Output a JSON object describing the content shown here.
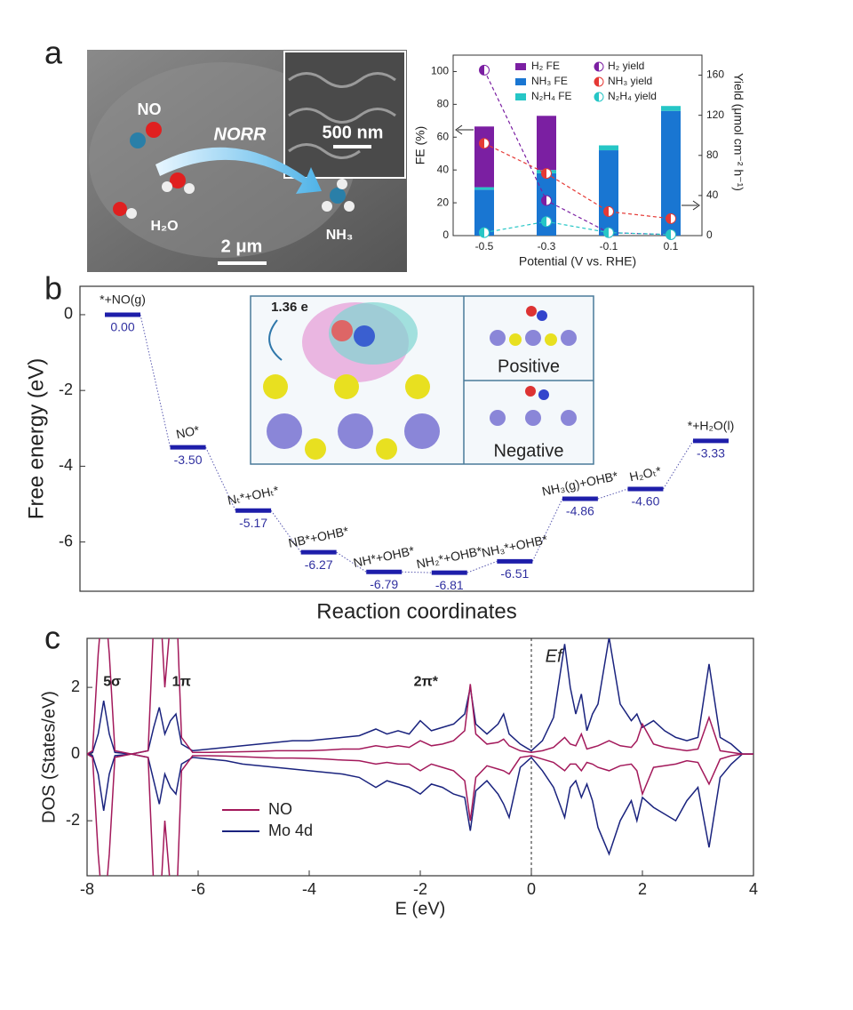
{
  "panel_labels": [
    "a",
    "b",
    "c"
  ],
  "sem_image": {
    "labels": [
      "NO",
      "NORR",
      "500 nm",
      "H₂O",
      "2 μm",
      "NH₃"
    ]
  },
  "chart_data": [
    {
      "type": "bar",
      "categories": [
        "-0.5",
        "-0.3",
        "-0.1",
        "0.1"
      ],
      "xlabel": "Potential (V vs. RHE)",
      "ylabel": "FE (%)",
      "y2label": "Yield (μmol cm⁻² h⁻¹)",
      "ylim": [
        0,
        110
      ],
      "yticks": [
        0,
        20,
        40,
        60,
        80,
        100
      ],
      "y2lim": [
        0,
        180
      ],
      "y2ticks": [
        0,
        40,
        80,
        120,
        160
      ],
      "stacked": true,
      "series": [
        {
          "name": "H₂ FE",
          "color": "#7b1fa2",
          "values": [
            37,
            33,
            0,
            0
          ]
        },
        {
          "name": "NH₃ FE",
          "color": "#1976d2",
          "values": [
            28,
            38,
            52,
            76
          ]
        },
        {
          "name": "N₂H₄ FE",
          "color": "#26c6c6",
          "values": [
            1.5,
            2,
            3,
            3
          ]
        },
        {
          "name": "H₂ yield",
          "color": "#7b1fa2",
          "axis": "y2",
          "values": [
            165,
            35,
            3,
            1
          ]
        },
        {
          "name": "NH₃ yield",
          "color": "#e53935",
          "axis": "y2",
          "values": [
            92,
            62,
            24,
            17
          ]
        },
        {
          "name": "N₂H₄ yield",
          "color": "#26c6c6",
          "axis": "y2",
          "values": [
            3,
            14,
            3,
            1
          ]
        }
      ]
    },
    {
      "type": "step",
      "ylabel": "Free energy (eV)",
      "xlabel": "Reaction coordinates",
      "categories": [
        "*+NO(g)",
        "NO*",
        "Nₜ*+OHₜ*",
        "NB*+OHB*",
        "NH*+OHB*",
        "NH₂*+OHB*",
        "NH₃*+OHB*",
        "NH₃(g)+OHB*",
        "H₂Oₜ*",
        "*+H₂O(l)"
      ],
      "values": [
        0.0,
        -3.5,
        -5.17,
        -6.27,
        -6.79,
        -6.81,
        -6.51,
        -4.86,
        -4.6,
        -3.33
      ],
      "value_labels": [
        "0.00",
        "-3.50",
        "-5.17",
        "-6.27",
        "-6.79",
        "-6.81",
        "-6.51",
        "-4.86",
        "-4.60",
        "-3.33"
      ],
      "ylim": [
        -7.3,
        0.75
      ],
      "yticks": [
        0,
        -2,
        -4,
        -6
      ],
      "color": "#1e1eaa",
      "inset_labels": [
        "1.36 e",
        "Positive",
        "Negative"
      ]
    },
    {
      "type": "line",
      "xlabel": "E (eV)",
      "ylabel": "DOS (States/eV)",
      "x": [
        -8,
        -7.9,
        -7.8,
        -7.7,
        -7.6,
        -7.5,
        -7.2,
        -6.9,
        -6.8,
        -6.7,
        -6.6,
        -6.5,
        -6.4,
        -6.3,
        -6.1,
        -5.8,
        -5.5,
        -5.2,
        -4.9,
        -4.6,
        -4.3,
        -4.0,
        -3.7,
        -3.4,
        -3.1,
        -2.8,
        -2.6,
        -2.4,
        -2.2,
        -2.0,
        -1.8,
        -1.6,
        -1.4,
        -1.2,
        -1.1,
        -1.0,
        -0.8,
        -0.6,
        -0.5,
        -0.4,
        -0.2,
        0,
        0.2,
        0.4,
        0.6,
        0.7,
        0.8,
        0.9,
        1.0,
        1.1,
        1.2,
        1.4,
        1.6,
        1.8,
        1.9,
        2.0,
        2.2,
        2.4,
        2.6,
        2.8,
        3.0,
        3.2,
        3.4,
        3.6,
        3.8,
        4.0
      ],
      "xlim": [
        -8,
        4
      ],
      "xticks": [
        -8,
        -6,
        -4,
        -2,
        0,
        2,
        4
      ],
      "ylim": [
        -3.65,
        3.47
      ],
      "yticks": [
        -2,
        0,
        2
      ],
      "vline": 0,
      "annotations": [
        "5σ",
        "1π",
        "2π*",
        "Ef"
      ],
      "series": [
        {
          "name": "NO",
          "color": "#a3195b",
          "values": [
            0,
            0.1,
            3,
            5,
            3,
            0.1,
            0,
            0.1,
            4,
            5,
            2,
            4,
            5,
            0.5,
            0.05,
            0.05,
            0.06,
            0.07,
            0.08,
            0.1,
            0.1,
            0.1,
            0.12,
            0.15,
            0.15,
            0.25,
            0.2,
            0.25,
            0.2,
            0.4,
            0.25,
            0.3,
            0.4,
            0.7,
            2.1,
            0.6,
            0.3,
            0.35,
            0.45,
            0.25,
            0.1,
            0.05,
            0.1,
            0.2,
            0.5,
            0.3,
            0.25,
            0.6,
            0.15,
            0.2,
            0.25,
            0.4,
            0.25,
            0.2,
            0.4,
            0.9,
            0.3,
            0.2,
            0.15,
            0.1,
            0.15,
            1.1,
            0.1,
            0.05,
            0,
            0
          ],
          "values_down": [
            0,
            -0.1,
            -3,
            -5,
            -3,
            -0.1,
            0,
            -0.1,
            -4,
            -5,
            -2,
            -4,
            -5,
            -0.5,
            -0.05,
            -0.05,
            -0.06,
            -0.08,
            -0.1,
            -0.12,
            -0.12,
            -0.13,
            -0.15,
            -0.18,
            -0.2,
            -0.3,
            -0.25,
            -0.3,
            -0.3,
            -0.5,
            -0.3,
            -0.4,
            -0.5,
            -0.8,
            -2.0,
            -0.7,
            -0.35,
            -0.45,
            -0.5,
            -0.6,
            -0.1,
            -0.05,
            -0.15,
            -0.25,
            -0.5,
            -0.3,
            -0.3,
            -0.5,
            -0.25,
            -0.3,
            -0.4,
            -0.5,
            -0.35,
            -0.3,
            -0.5,
            -1.2,
            -0.4,
            -0.35,
            -0.3,
            -0.2,
            -0.25,
            -0.9,
            -0.15,
            -0.05,
            0,
            0
          ]
        },
        {
          "name": "Mo 4d",
          "color": "#1a237e",
          "values": [
            0,
            0.05,
            0.6,
            1.6,
            0.6,
            0.05,
            0,
            0.1,
            0.8,
            1.4,
            0.6,
            1.0,
            1.2,
            0.3,
            0.1,
            0.15,
            0.2,
            0.25,
            0.3,
            0.35,
            0.4,
            0.4,
            0.45,
            0.5,
            0.55,
            0.75,
            0.6,
            0.7,
            0.6,
            1.0,
            0.7,
            0.8,
            0.9,
            1.2,
            2.0,
            0.9,
            0.6,
            0.9,
            1.2,
            0.6,
            0.3,
            0.1,
            0.4,
            1.1,
            3.3,
            2.0,
            1.2,
            1.8,
            0.7,
            1.2,
            1.5,
            3.5,
            1.5,
            1.0,
            1.2,
            0.8,
            1.0,
            0.7,
            0.5,
            0.4,
            0.5,
            2.7,
            0.5,
            0.3,
            0,
            0
          ],
          "values_down": [
            0,
            -0.05,
            -0.6,
            -1.7,
            -0.6,
            -0.05,
            0,
            -0.1,
            -0.8,
            -1.5,
            -0.6,
            -1.0,
            -1.2,
            -0.3,
            -0.1,
            -0.15,
            -0.2,
            -0.3,
            -0.35,
            -0.4,
            -0.45,
            -0.5,
            -0.55,
            -0.6,
            -0.7,
            -1.0,
            -0.8,
            -0.9,
            -1.0,
            -1.2,
            -0.9,
            -1.0,
            -1.2,
            -1.3,
            -2.3,
            -1.1,
            -0.8,
            -1.2,
            -1.5,
            -1.9,
            -0.4,
            -0.1,
            -0.5,
            -1.0,
            -1.9,
            -1.0,
            -0.8,
            -1.3,
            -0.9,
            -1.4,
            -2.2,
            -3.0,
            -2.0,
            -1.4,
            -2.0,
            -1.3,
            -1.6,
            -1.8,
            -2.0,
            -1.4,
            -1.0,
            -2.8,
            -0.7,
            -0.3,
            0,
            0
          ]
        }
      ]
    }
  ]
}
